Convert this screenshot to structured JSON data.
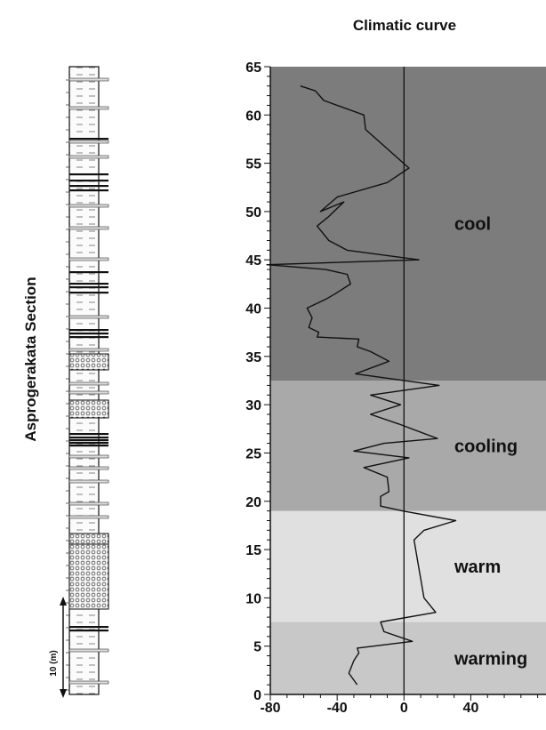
{
  "figure": {
    "section_label": "Asprogerakata Section",
    "scale_label": "10 (m)"
  },
  "chart_data": {
    "type": "line",
    "title": "Climatic curve",
    "xlabel": "",
    "ylabel": "",
    "xlim": [
      -80,
      85
    ],
    "ylim": [
      0,
      65
    ],
    "xticks": [
      -80,
      -40,
      0,
      40
    ],
    "yticks": [
      0,
      5,
      10,
      15,
      20,
      25,
      30,
      35,
      40,
      45,
      50,
      55,
      60,
      65
    ],
    "grid": false,
    "zero_line": 0,
    "zones": [
      {
        "label": "warming",
        "from": 0,
        "to": 7.5,
        "color": "#c8c8c8"
      },
      {
        "label": "warm",
        "from": 7.5,
        "to": 19,
        "color": "#e0e0e0"
      },
      {
        "label": "cooling",
        "from": 19,
        "to": 32.5,
        "color": "#a9a9a9"
      },
      {
        "label": "cool",
        "from": 32.5,
        "to": 65,
        "color": "#7c7c7c"
      }
    ],
    "series": [
      {
        "line_color": "#111111",
        "points": [
          [
            -28,
            1
          ],
          [
            -33,
            2.2
          ],
          [
            -30,
            3.5
          ],
          [
            -27,
            4.3
          ],
          [
            -28,
            4.8
          ],
          [
            5,
            5.5
          ],
          [
            -12,
            6.5
          ],
          [
            -14,
            7.5
          ],
          [
            19,
            8.5
          ],
          [
            12,
            10
          ],
          [
            8,
            14
          ],
          [
            6,
            16
          ],
          [
            12,
            17
          ],
          [
            31,
            18
          ],
          [
            -1,
            19
          ],
          [
            -14,
            19.5
          ],
          [
            -14,
            20.5
          ],
          [
            -9,
            21
          ],
          [
            -10,
            22.5
          ],
          [
            -24,
            23.5
          ],
          [
            3,
            24.5
          ],
          [
            -30,
            25.2
          ],
          [
            -12,
            26
          ],
          [
            20,
            26.5
          ],
          [
            -3,
            28
          ],
          [
            -20,
            29
          ],
          [
            -2,
            30
          ],
          [
            -20,
            31
          ],
          [
            21,
            32
          ],
          [
            -29,
            33.2
          ],
          [
            -9,
            34.5
          ],
          [
            -20,
            35.5
          ],
          [
            -28,
            36
          ],
          [
            -27,
            36.8
          ],
          [
            -52,
            37
          ],
          [
            -51,
            37.5
          ],
          [
            -57,
            38
          ],
          [
            -55,
            39
          ],
          [
            -58,
            40
          ],
          [
            -52,
            40.5
          ],
          [
            -46,
            41
          ],
          [
            -41,
            41.5
          ],
          [
            -32,
            42.5
          ],
          [
            -34,
            43.5
          ],
          [
            -47,
            44
          ],
          [
            -82,
            44.5
          ],
          [
            9,
            45
          ],
          [
            -34,
            46
          ],
          [
            -45,
            47
          ],
          [
            -52,
            48.5
          ],
          [
            -45,
            49.5
          ],
          [
            -36,
            51
          ],
          [
            -50,
            50
          ],
          [
            -40,
            51.5
          ],
          [
            -10,
            53
          ],
          [
            3,
            54.5
          ],
          [
            -23,
            58.5
          ],
          [
            -24,
            60
          ],
          [
            -48,
            61.5
          ],
          [
            -53,
            62.5
          ],
          [
            -62,
            63
          ]
        ]
      }
    ]
  }
}
